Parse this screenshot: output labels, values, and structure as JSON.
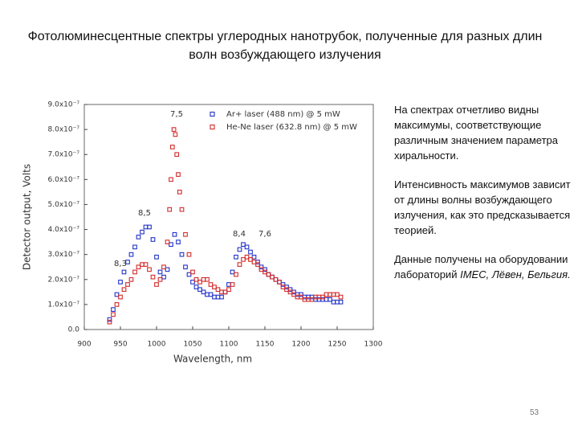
{
  "slide": {
    "title": "Фотолюминесцентные спектры углеродных нанотрубок, полученные для разных длин волн возбуждающего излучения",
    "page_number": "53"
  },
  "text_panel": {
    "paragraphs": [
      "На спектрах отчетливо видны максимумы, соответствующие различным значением параметра хиральности.",
      "Интенсивность максимумов зависит от длины волны возбуждающего излучения, как это предсказывается теорией."
    ],
    "last_paragraph": "Данные получены на оборудовании лабораторий",
    "last_emphasis": "IMEC, Лёвен, Бельгия."
  },
  "chart_data": {
    "type": "scatter",
    "x_label": "Wavelength, nm",
    "y_label": "Detector output, Volts",
    "legend": "top",
    "xlim": [
      900,
      1300
    ],
    "xticks": [
      900,
      950,
      1000,
      1050,
      1100,
      1150,
      1200,
      1250,
      1300
    ],
    "ylim": [
      0,
      9e-07
    ],
    "yticks": [
      {
        "value": 0,
        "label": "0.0"
      },
      {
        "value": 1e-07,
        "label": "1.0x10⁻⁷"
      },
      {
        "value": 2e-07,
        "label": "2.0x10⁻⁷"
      },
      {
        "value": 3e-07,
        "label": "3.0x10⁻⁷"
      },
      {
        "value": 4e-07,
        "label": "4.0x10⁻⁷"
      },
      {
        "value": 5e-07,
        "label": "5.0x10⁻⁷"
      },
      {
        "value": 6e-07,
        "label": "6.0x10⁻⁷"
      },
      {
        "value": 7e-07,
        "label": "7.0x10⁻⁷"
      },
      {
        "value": 8e-07,
        "label": "8.0x10⁻⁷"
      },
      {
        "value": 9e-07,
        "label": "9.0x10⁻⁷"
      }
    ],
    "annotations": [
      "7,5",
      "8,5",
      "8,3",
      "8,4",
      "7,6"
    ],
    "series": [
      {
        "name": "Ar+ laser (488 nm) @ 5 mW",
        "color": "#2233c8",
        "x": [
          935,
          940,
          945,
          950,
          955,
          960,
          965,
          970,
          975,
          980,
          985,
          990,
          995,
          1000,
          1005,
          1010,
          1015,
          1020,
          1025,
          1030,
          1035,
          1040,
          1045,
          1050,
          1055,
          1060,
          1065,
          1070,
          1075,
          1080,
          1085,
          1090,
          1095,
          1100,
          1105,
          1110,
          1115,
          1120,
          1125,
          1130,
          1135,
          1140,
          1145,
          1150,
          1155,
          1160,
          1165,
          1170,
          1175,
          1180,
          1185,
          1190,
          1195,
          1200,
          1205,
          1210,
          1215,
          1220,
          1225,
          1230,
          1235,
          1240,
          1245,
          1250,
          1255
        ],
        "values": [
          4e-08,
          8e-08,
          1.4e-07,
          1.9e-07,
          2.3e-07,
          2.7e-07,
          3e-07,
          3.3e-07,
          3.7e-07,
          3.9e-07,
          4.1e-07,
          4.1e-07,
          3.6e-07,
          2.9e-07,
          2.3e-07,
          2.1e-07,
          2.4e-07,
          3.4e-07,
          3.8e-07,
          3.5e-07,
          3e-07,
          2.5e-07,
          2.2e-07,
          1.9e-07,
          1.7e-07,
          1.6e-07,
          1.5e-07,
          1.4e-07,
          1.4e-07,
          1.3e-07,
          1.3e-07,
          1.3e-07,
          1.5e-07,
          1.8e-07,
          2.3e-07,
          2.9e-07,
          3.2e-07,
          3.4e-07,
          3.3e-07,
          3.1e-07,
          2.9e-07,
          2.7e-07,
          2.5e-07,
          2.4e-07,
          2.2e-07,
          2.1e-07,
          2e-07,
          1.9e-07,
          1.8e-07,
          1.7e-07,
          1.6e-07,
          1.5e-07,
          1.4e-07,
          1.4e-07,
          1.3e-07,
          1.3e-07,
          1.3e-07,
          1.2e-07,
          1.2e-07,
          1.2e-07,
          1.2e-07,
          1.2e-07,
          1.1e-07,
          1.1e-07,
          1.1e-07
        ]
      },
      {
        "name": "He-Ne laser (632.8 nm) @ 5 mW",
        "color": "#d42a2a",
        "x": [
          935,
          940,
          945,
          950,
          955,
          960,
          965,
          970,
          975,
          980,
          985,
          990,
          995,
          1000,
          1005,
          1010,
          1015,
          1018,
          1020,
          1022,
          1024,
          1026,
          1028,
          1030,
          1032,
          1035,
          1040,
          1045,
          1050,
          1055,
          1060,
          1065,
          1070,
          1075,
          1080,
          1085,
          1090,
          1095,
          1100,
          1105,
          1110,
          1115,
          1120,
          1125,
          1130,
          1135,
          1140,
          1145,
          1150,
          1155,
          1160,
          1165,
          1170,
          1175,
          1180,
          1185,
          1190,
          1195,
          1200,
          1205,
          1210,
          1215,
          1220,
          1225,
          1230,
          1235,
          1240,
          1245,
          1250,
          1255
        ],
        "values": [
          3e-08,
          6e-08,
          1e-07,
          1.3e-07,
          1.6e-07,
          1.8e-07,
          2e-07,
          2.3e-07,
          2.5e-07,
          2.6e-07,
          2.6e-07,
          2.4e-07,
          2.1e-07,
          1.8e-07,
          2e-07,
          2.5e-07,
          3.5e-07,
          4.8e-07,
          6e-07,
          7.3e-07,
          8e-07,
          7.8e-07,
          7e-07,
          6.2e-07,
          5.5e-07,
          4.8e-07,
          3.8e-07,
          3e-07,
          2.3e-07,
          2e-07,
          1.9e-07,
          2e-07,
          2e-07,
          1.8e-07,
          1.7e-07,
          1.6e-07,
          1.5e-07,
          1.5e-07,
          1.6e-07,
          1.8e-07,
          2.2e-07,
          2.6e-07,
          2.8e-07,
          2.9e-07,
          2.8e-07,
          2.7e-07,
          2.6e-07,
          2.4e-07,
          2.3e-07,
          2.2e-07,
          2.1e-07,
          2e-07,
          1.9e-07,
          1.7e-07,
          1.6e-07,
          1.5e-07,
          1.4e-07,
          1.3e-07,
          1.3e-07,
          1.2e-07,
          1.2e-07,
          1.2e-07,
          1.3e-07,
          1.3e-07,
          1.3e-07,
          1.4e-07,
          1.4e-07,
          1.4e-07,
          1.4e-07,
          1.3e-07
        ]
      }
    ]
  }
}
